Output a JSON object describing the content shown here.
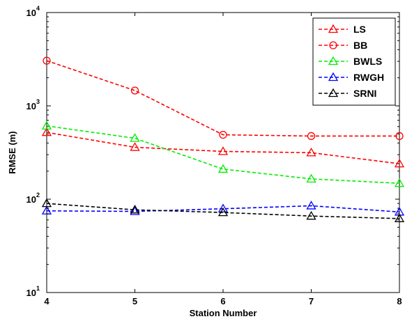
{
  "chart_data": {
    "type": "line",
    "title": "",
    "xlabel": "Station Number",
    "ylabel": "RMSE (m)",
    "y_scale": "log",
    "xlim": [
      4,
      8
    ],
    "ylim": [
      10,
      10000
    ],
    "x": [
      4,
      5,
      6,
      7,
      8
    ],
    "x_tick_labels": [
      "4",
      "5",
      "6",
      "7",
      "8"
    ],
    "y_ticks": [
      {
        "value": 10,
        "base": "10",
        "exp": "1"
      },
      {
        "value": 100,
        "base": "10",
        "exp": "2"
      },
      {
        "value": 1000,
        "base": "10",
        "exp": "3"
      },
      {
        "value": 10000,
        "base": "10",
        "exp": "4"
      }
    ],
    "grid": false,
    "legend_position": "top-right",
    "series": [
      {
        "name": "LS",
        "color": "#ff0000",
        "marker": "triangle",
        "values": [
          520,
          360,
          325,
          315,
          240
        ]
      },
      {
        "name": "BB",
        "color": "#ff0000",
        "marker": "circle",
        "values": [
          3050,
          1460,
          490,
          475,
          475
        ]
      },
      {
        "name": "BWLS",
        "color": "#00ee00",
        "marker": "triangle",
        "values": [
          610,
          450,
          210,
          165,
          148
        ]
      },
      {
        "name": "RWGH",
        "color": "#0000ff",
        "marker": "triangle",
        "values": [
          75,
          74,
          79,
          85,
          73
        ]
      },
      {
        "name": "SRNI",
        "color": "#000000",
        "marker": "triangle",
        "values": [
          90,
          77,
          72,
          66,
          62
        ]
      }
    ]
  }
}
